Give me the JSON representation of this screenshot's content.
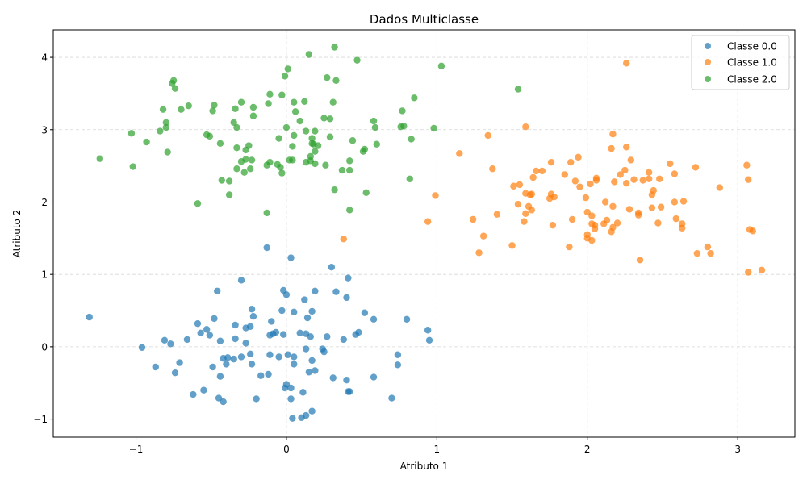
{
  "chart_data": {
    "type": "scatter",
    "title": "Dados Multiclasse",
    "xlabel": "Atributo 1",
    "ylabel": "Atributo 2",
    "xlim": [
      -1.55,
      3.38
    ],
    "ylim": [
      -1.25,
      4.38
    ],
    "xticks": [
      -1,
      0,
      1,
      2,
      3
    ],
    "yticks": [
      -1,
      0,
      1,
      2,
      3,
      4
    ],
    "xtick_labels": [
      "−1",
      "0",
      "1",
      "2",
      "3"
    ],
    "ytick_labels": [
      "−1",
      "0",
      "1",
      "2",
      "3",
      "4"
    ],
    "grid": true,
    "legend_position": "top-right",
    "series": [
      {
        "name": "Classe 0.0",
        "color": "#1f77b4",
        "points": [
          [
            -1.31,
            0.41
          ],
          [
            -0.96,
            -0.01
          ],
          [
            -0.87,
            -0.28
          ],
          [
            -0.81,
            0.09
          ],
          [
            -0.77,
            0.04
          ],
          [
            -0.74,
            -0.36
          ],
          [
            -0.71,
            -0.22
          ],
          [
            -0.66,
            0.1
          ],
          [
            -0.62,
            -0.66
          ],
          [
            -0.59,
            0.32
          ],
          [
            -0.57,
            0.19
          ],
          [
            -0.55,
            -0.6
          ],
          [
            -0.53,
            0.24
          ],
          [
            -0.51,
            0.16
          ],
          [
            -0.49,
            -0.28
          ],
          [
            -0.48,
            0.39
          ],
          [
            -0.46,
            0.77
          ],
          [
            -0.45,
            -0.71
          ],
          [
            -0.44,
            -0.41
          ],
          [
            -0.44,
            0.08
          ],
          [
            -0.42,
            -0.16
          ],
          [
            -0.42,
            -0.76
          ],
          [
            -0.4,
            -0.24
          ],
          [
            -0.39,
            -0.15
          ],
          [
            -0.35,
            -0.17
          ],
          [
            -0.34,
            0.3
          ],
          [
            -0.34,
            0.11
          ],
          [
            -0.3,
            0.92
          ],
          [
            -0.3,
            -0.14
          ],
          [
            -0.27,
            0.26
          ],
          [
            -0.27,
            0.05
          ],
          [
            -0.24,
            0.28
          ],
          [
            -0.24,
            -0.1
          ],
          [
            -0.23,
            -0.24
          ],
          [
            -0.23,
            0.52
          ],
          [
            -0.22,
            0.42
          ],
          [
            -0.2,
            -0.72
          ],
          [
            -0.17,
            -0.4
          ],
          [
            -0.13,
            1.37
          ],
          [
            -0.12,
            -0.38
          ],
          [
            -0.11,
            0.16
          ],
          [
            -0.11,
            -0.11
          ],
          [
            -0.1,
            0.35
          ],
          [
            -0.09,
            0.18
          ],
          [
            -0.07,
            0.2
          ],
          [
            -0.05,
            -0.14
          ],
          [
            -0.03,
            0.5
          ],
          [
            -0.02,
            0.17
          ],
          [
            -0.02,
            0.78
          ],
          [
            -0.01,
            -0.57
          ],
          [
            0.0,
            -0.52
          ],
          [
            0.0,
            0.72
          ],
          [
            0.01,
            -0.11
          ],
          [
            0.03,
            -0.57
          ],
          [
            0.03,
            1.23
          ],
          [
            0.03,
            -0.72
          ],
          [
            0.04,
            -0.99
          ],
          [
            0.05,
            -0.24
          ],
          [
            0.05,
            0.48
          ],
          [
            0.05,
            -0.14
          ],
          [
            0.09,
            0.19
          ],
          [
            0.1,
            -0.98
          ],
          [
            0.11,
            -0.63
          ],
          [
            0.12,
            0.65
          ],
          [
            0.13,
            0.18
          ],
          [
            0.13,
            -0.95
          ],
          [
            0.13,
            -0.03
          ],
          [
            0.14,
            0.4
          ],
          [
            0.15,
            -0.35
          ],
          [
            0.16,
            0.14
          ],
          [
            0.17,
            0.49
          ],
          [
            0.17,
            -0.19
          ],
          [
            0.17,
            -0.89
          ],
          [
            0.19,
            0.77
          ],
          [
            0.19,
            -0.33
          ],
          [
            0.24,
            -0.03
          ],
          [
            0.25,
            -0.07
          ],
          [
            0.27,
            0.14
          ],
          [
            0.3,
            1.1
          ],
          [
            0.31,
            -0.43
          ],
          [
            0.33,
            0.76
          ],
          [
            0.38,
            0.1
          ],
          [
            0.4,
            -0.46
          ],
          [
            0.4,
            0.68
          ],
          [
            0.41,
            -0.62
          ],
          [
            0.42,
            -0.62
          ],
          [
            0.41,
            0.95
          ],
          [
            0.46,
            0.17
          ],
          [
            0.48,
            0.2
          ],
          [
            0.52,
            0.47
          ],
          [
            0.58,
            0.38
          ],
          [
            0.58,
            -0.42
          ],
          [
            0.7,
            -0.71
          ],
          [
            0.74,
            -0.11
          ],
          [
            0.74,
            -0.25
          ],
          [
            0.8,
            0.38
          ],
          [
            0.94,
            0.23
          ],
          [
            0.95,
            0.09
          ]
        ]
      },
      {
        "name": "Classe 1.0",
        "color": "#ff7f0e",
        "points": [
          [
            0.38,
            1.49
          ],
          [
            0.94,
            1.73
          ],
          [
            0.99,
            2.09
          ],
          [
            1.15,
            2.67
          ],
          [
            1.24,
            1.76
          ],
          [
            1.28,
            1.3
          ],
          [
            1.31,
            1.53
          ],
          [
            1.34,
            2.92
          ],
          [
            1.37,
            2.46
          ],
          [
            1.4,
            1.83
          ],
          [
            1.5,
            1.4
          ],
          [
            1.51,
            2.22
          ],
          [
            1.54,
            1.97
          ],
          [
            1.55,
            2.24
          ],
          [
            1.58,
            1.73
          ],
          [
            1.59,
            2.12
          ],
          [
            1.59,
            1.84
          ],
          [
            1.59,
            3.04
          ],
          [
            1.61,
            1.94
          ],
          [
            1.62,
            2.1
          ],
          [
            1.63,
            2.11
          ],
          [
            1.63,
            1.89
          ],
          [
            1.64,
            2.34
          ],
          [
            1.66,
            2.43
          ],
          [
            1.7,
            2.43
          ],
          [
            1.75,
            2.05
          ],
          [
            1.76,
            2.11
          ],
          [
            1.76,
            2.55
          ],
          [
            1.77,
            1.68
          ],
          [
            1.78,
            2.07
          ],
          [
            1.85,
            2.38
          ],
          [
            1.88,
            1.38
          ],
          [
            1.89,
            2.55
          ],
          [
            1.9,
            1.76
          ],
          [
            1.92,
            2.29
          ],
          [
            1.94,
            2.62
          ],
          [
            1.95,
            2.21
          ],
          [
            1.99,
            2.06
          ],
          [
            2.0,
            1.86
          ],
          [
            2.0,
            1.55
          ],
          [
            2.0,
            1.5
          ],
          [
            2.02,
            2.25
          ],
          [
            2.03,
            1.7
          ],
          [
            2.03,
            1.81
          ],
          [
            2.03,
            1.47
          ],
          [
            2.05,
            1.68
          ],
          [
            2.05,
            1.63
          ],
          [
            2.06,
            2.3
          ],
          [
            2.06,
            2.33
          ],
          [
            2.11,
            1.7
          ],
          [
            2.12,
            2.0
          ],
          [
            2.13,
            1.75
          ],
          [
            2.16,
            2.74
          ],
          [
            2.16,
            1.59
          ],
          [
            2.17,
            1.94
          ],
          [
            2.17,
            2.94
          ],
          [
            2.17,
            1.65
          ],
          [
            2.18,
            2.28
          ],
          [
            2.2,
            1.71
          ],
          [
            2.22,
            2.38
          ],
          [
            2.25,
            2.44
          ],
          [
            2.26,
            3.92
          ],
          [
            2.26,
            2.76
          ],
          [
            2.26,
            2.26
          ],
          [
            2.28,
            1.9
          ],
          [
            2.29,
            2.58
          ],
          [
            2.31,
            2.31
          ],
          [
            2.34,
            1.85
          ],
          [
            2.34,
            1.82
          ],
          [
            2.35,
            1.2
          ],
          [
            2.37,
            2.3
          ],
          [
            2.41,
            2.32
          ],
          [
            2.41,
            2.41
          ],
          [
            2.43,
            1.92
          ],
          [
            2.43,
            2.1
          ],
          [
            2.44,
            2.16
          ],
          [
            2.47,
            1.71
          ],
          [
            2.48,
            2.32
          ],
          [
            2.49,
            1.93
          ],
          [
            2.55,
            2.53
          ],
          [
            2.58,
            2.0
          ],
          [
            2.58,
            2.39
          ],
          [
            2.59,
            1.77
          ],
          [
            2.63,
            1.7
          ],
          [
            2.64,
            2.01
          ],
          [
            2.63,
            1.64
          ],
          [
            2.72,
            2.48
          ],
          [
            2.73,
            1.29
          ],
          [
            2.8,
            1.38
          ],
          [
            2.82,
            1.29
          ],
          [
            2.88,
            2.2
          ],
          [
            3.06,
            2.51
          ],
          [
            3.07,
            1.03
          ],
          [
            3.07,
            2.31
          ],
          [
            3.08,
            1.62
          ],
          [
            3.1,
            1.6
          ],
          [
            3.16,
            1.06
          ]
        ]
      },
      {
        "name": "Classe 2.0",
        "color": "#2ca02c",
        "points": [
          [
            -1.24,
            2.6
          ],
          [
            -1.03,
            2.95
          ],
          [
            -1.02,
            2.49
          ],
          [
            -0.93,
            2.83
          ],
          [
            -0.84,
            2.98
          ],
          [
            -0.82,
            3.28
          ],
          [
            -0.8,
            3.03
          ],
          [
            -0.8,
            3.1
          ],
          [
            -0.79,
            2.69
          ],
          [
            -0.76,
            3.64
          ],
          [
            -0.75,
            3.68
          ],
          [
            -0.74,
            3.57
          ],
          [
            -0.7,
            3.28
          ],
          [
            -0.65,
            3.33
          ],
          [
            -0.59,
            1.98
          ],
          [
            -0.53,
            2.93
          ],
          [
            -0.51,
            2.91
          ],
          [
            -0.49,
            3.26
          ],
          [
            -0.48,
            3.34
          ],
          [
            -0.44,
            2.81
          ],
          [
            -0.43,
            2.3
          ],
          [
            -0.38,
            2.29
          ],
          [
            -0.38,
            2.1
          ],
          [
            -0.35,
            3.1
          ],
          [
            -0.34,
            3.29
          ],
          [
            -0.33,
            2.75
          ],
          [
            -0.33,
            2.46
          ],
          [
            -0.33,
            3.03
          ],
          [
            -0.3,
            3.38
          ],
          [
            -0.3,
            2.56
          ],
          [
            -0.28,
            2.41
          ],
          [
            -0.27,
            2.59
          ],
          [
            -0.27,
            2.72
          ],
          [
            -0.25,
            2.78
          ],
          [
            -0.24,
            2.46
          ],
          [
            -0.23,
            2.58
          ],
          [
            -0.22,
            3.19
          ],
          [
            -0.22,
            3.31
          ],
          [
            -0.13,
            1.85
          ],
          [
            -0.13,
            2.51
          ],
          [
            -0.12,
            3.36
          ],
          [
            -0.11,
            2.55
          ],
          [
            -0.11,
            3.49
          ],
          [
            -0.06,
            2.52
          ],
          [
            -0.05,
            2.88
          ],
          [
            -0.04,
            2.48
          ],
          [
            -0.03,
            3.48
          ],
          [
            -0.03,
            2.4
          ],
          [
            -0.01,
            3.74
          ],
          [
            0.0,
            3.03
          ],
          [
            0.01,
            3.84
          ],
          [
            0.02,
            2.58
          ],
          [
            0.04,
            2.58
          ],
          [
            0.04,
            2.77
          ],
          [
            0.05,
            2.92
          ],
          [
            0.05,
            3.38
          ],
          [
            0.06,
            3.25
          ],
          [
            0.09,
            3.12
          ],
          [
            0.12,
            3.39
          ],
          [
            0.13,
            2.55
          ],
          [
            0.13,
            2.98
          ],
          [
            0.15,
            4.04
          ],
          [
            0.16,
            2.57
          ],
          [
            0.16,
            2.63
          ],
          [
            0.17,
            2.88
          ],
          [
            0.17,
            2.81
          ],
          [
            0.18,
            2.8
          ],
          [
            0.19,
            2.7
          ],
          [
            0.19,
            2.53
          ],
          [
            0.19,
            2.98
          ],
          [
            0.21,
            2.78
          ],
          [
            0.25,
            3.16
          ],
          [
            0.26,
            2.51
          ],
          [
            0.27,
            3.72
          ],
          [
            0.29,
            2.9
          ],
          [
            0.29,
            3.15
          ],
          [
            0.31,
            3.38
          ],
          [
            0.32,
            4.14
          ],
          [
            0.32,
            2.17
          ],
          [
            0.33,
            3.68
          ],
          [
            0.37,
            2.44
          ],
          [
            0.42,
            2.44
          ],
          [
            0.42,
            2.57
          ],
          [
            0.42,
            1.89
          ],
          [
            0.44,
            2.85
          ],
          [
            0.47,
            3.96
          ],
          [
            0.51,
            2.7
          ],
          [
            0.52,
            2.73
          ],
          [
            0.53,
            2.13
          ],
          [
            0.58,
            3.12
          ],
          [
            0.59,
            3.03
          ],
          [
            0.6,
            2.8
          ],
          [
            0.76,
            3.04
          ],
          [
            0.77,
            3.26
          ],
          [
            0.78,
            3.05
          ],
          [
            0.82,
            2.32
          ],
          [
            0.83,
            2.87
          ],
          [
            0.85,
            3.44
          ],
          [
            0.98,
            3.02
          ],
          [
            1.03,
            3.88
          ],
          [
            1.54,
            3.56
          ]
        ]
      }
    ]
  }
}
